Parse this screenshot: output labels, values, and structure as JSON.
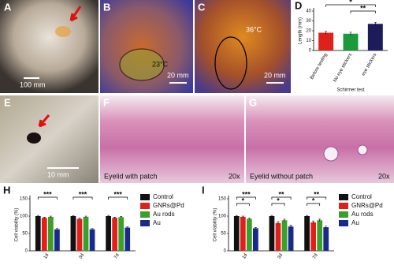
{
  "photo_panels": [
    {
      "label": "A",
      "texts": [
        "100 mm"
      ]
    },
    {
      "label": "B",
      "texts": [
        "23°C",
        "20 mm"
      ]
    },
    {
      "label": "C",
      "texts": [
        "36°C",
        "20 mm"
      ]
    },
    {
      "label": "E",
      "texts": [
        "10 mm"
      ]
    },
    {
      "label": "F",
      "texts": [
        "Eyelid with patch",
        "20x"
      ]
    },
    {
      "label": "G",
      "texts": [
        "Eyelid without patch",
        "20x"
      ]
    }
  ],
  "chart_data": [
    {
      "type": "bar",
      "panel": "D",
      "ylabel": "Length (mm)",
      "xlabel": "Schirmer test",
      "categories": [
        "Before testing",
        "No eye stickers",
        "eye stickers"
      ],
      "values": [
        18,
        17,
        27
      ],
      "errors": [
        1.5,
        1.5,
        1.5
      ],
      "colors": [
        "#e0201b",
        "#1a9a3a",
        "#1c1c5a"
      ],
      "ylim": [
        0,
        40
      ],
      "yticks": [
        0,
        10,
        20,
        30,
        40
      ],
      "annotations": [
        "*",
        "**"
      ]
    },
    {
      "type": "bar",
      "panel": "H",
      "ylabel": "Cell viability (%)",
      "categories": [
        "1d",
        "3d",
        "7d"
      ],
      "series": [
        {
          "name": "Control",
          "color": "#111111",
          "values": [
            100,
            100,
            100
          ],
          "errors": [
            2,
            2,
            2
          ]
        },
        {
          "name": "GNRs@Pd",
          "color": "#e0201b",
          "values": [
            95,
            92,
            95
          ],
          "errors": [
            2,
            2,
            2
          ]
        },
        {
          "name": "Au rods",
          "color": "#3aa02a",
          "values": [
            98,
            98,
            97
          ],
          "errors": [
            2,
            2,
            2
          ]
        },
        {
          "name": "Au",
          "color": "#1a2a8a",
          "values": [
            62,
            62,
            67
          ],
          "errors": [
            2,
            2,
            2
          ]
        }
      ],
      "ylim": [
        0,
        150
      ],
      "yticks": [
        0,
        50,
        100,
        150
      ],
      "annotations": [
        [
          "***"
        ],
        [
          "***"
        ],
        [
          "***"
        ]
      ]
    },
    {
      "type": "bar",
      "panel": "I",
      "ylabel": "Cell viability (%)",
      "categories": [
        "1d",
        "3d",
        "7d"
      ],
      "series": [
        {
          "name": "Control",
          "color": "#111111",
          "values": [
            100,
            100,
            100
          ],
          "errors": [
            2,
            2,
            2
          ]
        },
        {
          "name": "GNRs@Pd",
          "color": "#e0201b",
          "values": [
            98,
            80,
            82
          ],
          "errors": [
            2,
            4,
            4
          ]
        },
        {
          "name": "Au rods",
          "color": "#3aa02a",
          "values": [
            92,
            88,
            88
          ],
          "errors": [
            2,
            3,
            3
          ]
        },
        {
          "name": "Au",
          "color": "#1a2a8a",
          "values": [
            65,
            70,
            68
          ],
          "errors": [
            2,
            4,
            3
          ]
        }
      ],
      "ylim": [
        0,
        150
      ],
      "yticks": [
        0,
        50,
        100,
        150
      ],
      "annotations": [
        [
          "*",
          "***"
        ],
        [
          "*",
          "**"
        ],
        [
          "*",
          "**"
        ]
      ]
    }
  ]
}
